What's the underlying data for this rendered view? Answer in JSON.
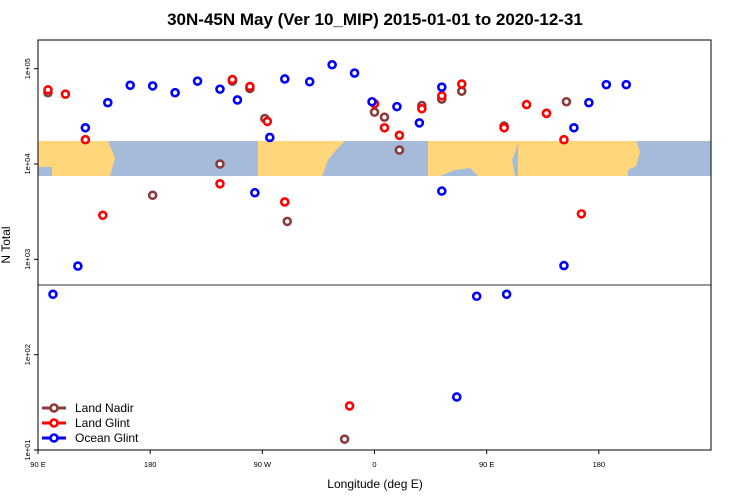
{
  "chart_data": {
    "type": "scatter",
    "title": "30N-45N May (Ver 10_MIP)   2015-01-01 to 2020-12-31",
    "xlabel": "Longitude (deg E)",
    "ylabel": "N Total",
    "xlim": [
      -90,
      180
    ],
    "ylim": [
      10,
      200000
    ],
    "yscale": "log",
    "grid": false,
    "legend_position": "bottom-left",
    "x_ticks": [
      {
        "value": -90,
        "label": "90 E"
      },
      {
        "value": -45,
        "label": "180"
      },
      {
        "value": 0,
        "label": "90 W"
      },
      {
        "value": 45,
        "label": "0"
      },
      {
        "value": 90,
        "label": "90 E"
      },
      {
        "value": 135,
        "label": "180"
      }
    ],
    "y_ticks": [
      {
        "value": 10,
        "label": "1e+01"
      },
      {
        "value": 100,
        "label": "1e+02"
      },
      {
        "value": 1000,
        "label": "1e+03"
      },
      {
        "value": 10000,
        "label": "1e+04"
      },
      {
        "value": 100000,
        "label": "1e+05"
      }
    ],
    "series": [
      {
        "name": "Land Nadir",
        "color": "#8b3a3a",
        "points": [
          {
            "x": -86,
            "y": 56000
          },
          {
            "x": -44,
            "y": 4700
          },
          {
            "x": -17,
            "y": 10000
          },
          {
            "x": -12,
            "y": 74000
          },
          {
            "x": -5,
            "y": 62000
          },
          {
            "x": 1,
            "y": 30000
          },
          {
            "x": 10,
            "y": 2500
          },
          {
            "x": 33,
            "y": 13
          },
          {
            "x": 45,
            "y": 35000
          },
          {
            "x": 49,
            "y": 31000
          },
          {
            "x": 55,
            "y": 14000
          },
          {
            "x": 64,
            "y": 41000
          },
          {
            "x": 72,
            "y": 48000
          },
          {
            "x": 80,
            "y": 58000
          },
          {
            "x": 97,
            "y": 25000
          },
          {
            "x": 114,
            "y": 34000
          },
          {
            "x": 122,
            "y": 45000
          }
        ]
      },
      {
        "name": "Land Glint",
        "color": "#ff0000",
        "points": [
          {
            "x": -86,
            "y": 60000
          },
          {
            "x": -79,
            "y": 54000
          },
          {
            "x": -71,
            "y": 18000
          },
          {
            "x": -64,
            "y": 2900
          },
          {
            "x": -17,
            "y": 6200
          },
          {
            "x": -12,
            "y": 77000
          },
          {
            "x": -5,
            "y": 65000
          },
          {
            "x": 2,
            "y": 28000
          },
          {
            "x": 9,
            "y": 4000
          },
          {
            "x": 35,
            "y": 29
          },
          {
            "x": 45,
            "y": 43000
          },
          {
            "x": 49,
            "y": 24000
          },
          {
            "x": 55,
            "y": 20000
          },
          {
            "x": 64,
            "y": 38000
          },
          {
            "x": 72,
            "y": 52000
          },
          {
            "x": 80,
            "y": 69000
          },
          {
            "x": 97,
            "y": 24000
          },
          {
            "x": 106,
            "y": 42000
          },
          {
            "x": 114,
            "y": 34000
          },
          {
            "x": 121,
            "y": 18000
          },
          {
            "x": 128,
            "y": 3000
          }
        ]
      },
      {
        "name": "Ocean Glint",
        "color": "#0000ff",
        "points": [
          {
            "x": -84,
            "y": 430
          },
          {
            "x": -74,
            "y": 850
          },
          {
            "x": -71,
            "y": 24000
          },
          {
            "x": -62,
            "y": 44000
          },
          {
            "x": -53,
            "y": 67000
          },
          {
            "x": -44,
            "y": 66000
          },
          {
            "x": -35,
            "y": 56000
          },
          {
            "x": -26,
            "y": 74000
          },
          {
            "x": -17,
            "y": 61000
          },
          {
            "x": -10,
            "y": 47000
          },
          {
            "x": -3,
            "y": 5000
          },
          {
            "x": 3,
            "y": 19000
          },
          {
            "x": 9,
            "y": 78000
          },
          {
            "x": 19,
            "y": 73000
          },
          {
            "x": 28,
            "y": 110000
          },
          {
            "x": 37,
            "y": 90000
          },
          {
            "x": 44,
            "y": 45000
          },
          {
            "x": 54,
            "y": 40000
          },
          {
            "x": 63,
            "y": 27000
          },
          {
            "x": 72,
            "y": 64000
          },
          {
            "x": 72,
            "y": 5200
          },
          {
            "x": 78,
            "y": 36
          },
          {
            "x": 86,
            "y": 410
          },
          {
            "x": 98,
            "y": 430
          },
          {
            "x": 121,
            "y": 860
          },
          {
            "x": 125,
            "y": 24000
          },
          {
            "x": 131,
            "y": 44000
          },
          {
            "x": 138,
            "y": 68000
          },
          {
            "x": 146,
            "y": 68000
          }
        ]
      }
    ]
  }
}
